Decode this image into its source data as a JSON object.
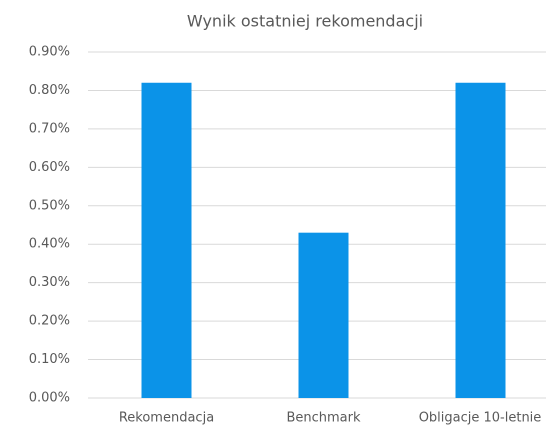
{
  "chart_data": {
    "type": "bar",
    "title": "Wynik ostatniej rekomendacji",
    "categories": [
      "Rekomendacja",
      "Benchmark",
      "Obligacje 10-letnie"
    ],
    "values": [
      0.82,
      0.43,
      0.82
    ],
    "color": "#0b93e8",
    "ylim": [
      0,
      0.9
    ],
    "yticks": [
      {
        "value": 0,
        "label": "0.00%"
      },
      {
        "value": 0.1,
        "label": "0.10%"
      },
      {
        "value": 0.2,
        "label": "0.20%"
      },
      {
        "value": 0.3,
        "label": "0.30%"
      },
      {
        "value": 0.4,
        "label": "0.40%"
      },
      {
        "value": 0.5,
        "label": "0.50%"
      },
      {
        "value": 0.6,
        "label": "0.60%"
      },
      {
        "value": 0.7,
        "label": "0.70%"
      },
      {
        "value": 0.8,
        "label": "0.80%"
      },
      {
        "value": 0.9,
        "label": "0.90%"
      }
    ],
    "grid": true
  }
}
